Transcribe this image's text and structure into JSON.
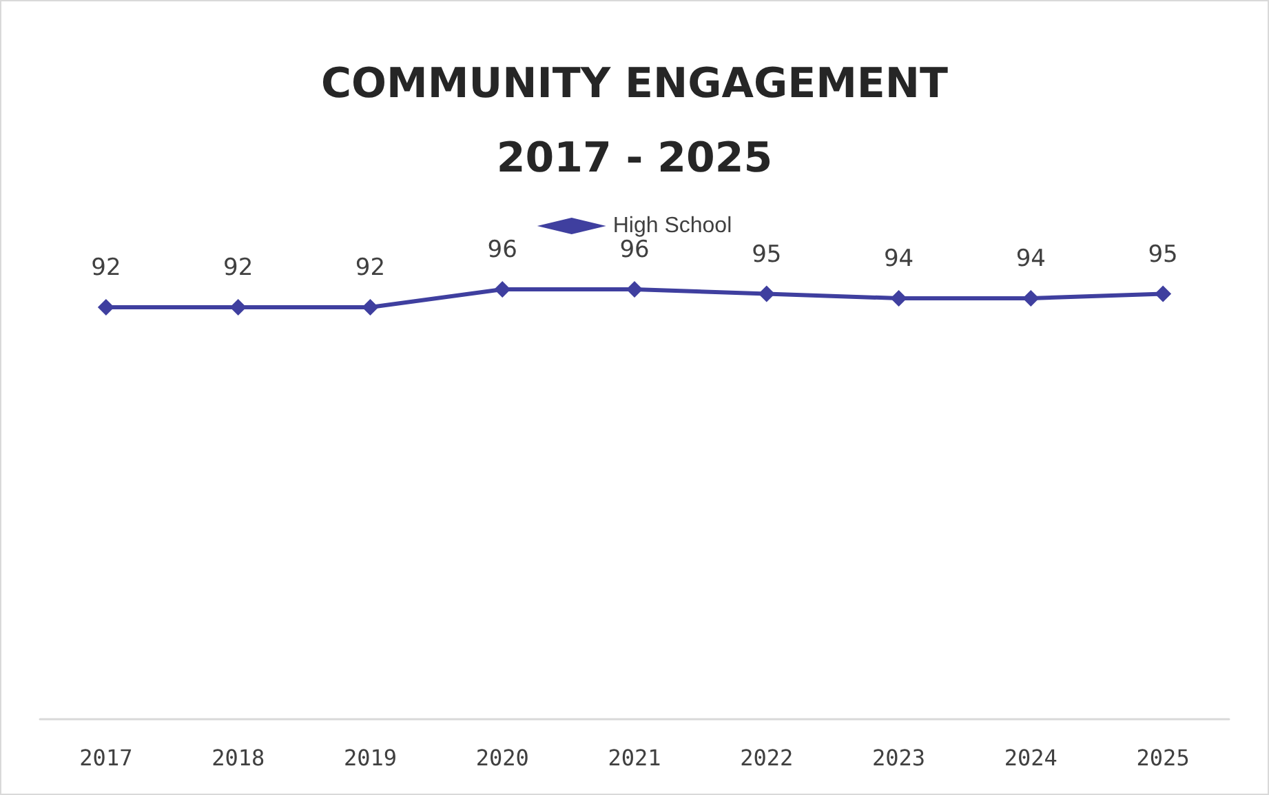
{
  "chart_data": {
    "type": "line",
    "title": "COMMUNITY ENGAGEMENT\n2017 - 2025",
    "categories": [
      "2017",
      "2018",
      "2019",
      "2020",
      "2021",
      "2022",
      "2023",
      "2024",
      "2025"
    ],
    "series": [
      {
        "name": "High School",
        "color": "#3f3f9f",
        "values": [
          92,
          92,
          92,
          96,
          96,
          95,
          94,
          94,
          95
        ]
      }
    ],
    "data_labels": true,
    "marker": "diamond",
    "line_style": "solid",
    "legend": "top",
    "grid": false,
    "tick_labels": "x"
  }
}
